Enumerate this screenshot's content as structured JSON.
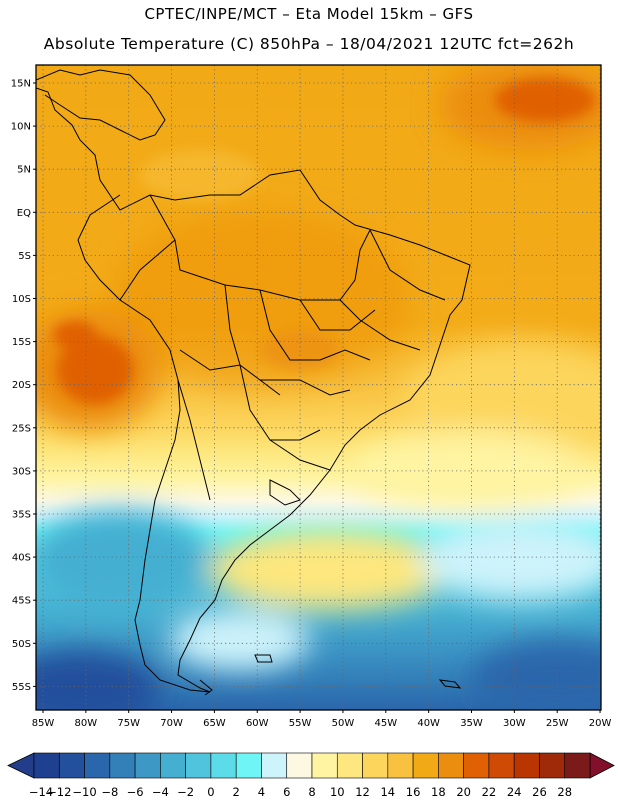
{
  "title_line1": "CPTEC/INPE/MCT –  Eta Model 15km – GFS",
  "title_line2": "Absolute Temperature (C) 850hPa – 18/04/2021 12UTC fct=262h",
  "lat_labels": [
    "15N",
    "10N",
    "5N",
    "EQ",
    "5S",
    "10S",
    "15S",
    "20S",
    "25S",
    "30S",
    "35S",
    "40S",
    "45S",
    "50S",
    "55S"
  ],
  "lon_labels": [
    "85W",
    "80W",
    "75W",
    "70W",
    "65W",
    "60W",
    "55W",
    "50W",
    "45W",
    "40W",
    "35W",
    "30W",
    "25W",
    "20W"
  ],
  "colorbar": {
    "labels": [
      "−14",
      "−12",
      "−10",
      "−8",
      "−6",
      "−4",
      "−2",
      "0",
      "2",
      "4",
      "6",
      "8",
      "10",
      "12",
      "14",
      "16",
      "18",
      "20",
      "22",
      "24",
      "26",
      "28"
    ],
    "colors": [
      "#1f3f8f",
      "#23509c",
      "#2a66ab",
      "#3380b9",
      "#3d98c6",
      "#45afd1",
      "#4fc4dc",
      "#5cdce8",
      "#6ff5f5",
      "#cdf3fb",
      "#fdf8e1",
      "#fef4a2",
      "#fde77e",
      "#fcd55c",
      "#f8c240",
      "#f2a916",
      "#eb8d0e",
      "#e06104",
      "#cf4a04",
      "#b93603",
      "#9e2a0a",
      "#7a1b1a"
    ],
    "under_color": "#223d8a",
    "over_color": "#82102a"
  }
}
